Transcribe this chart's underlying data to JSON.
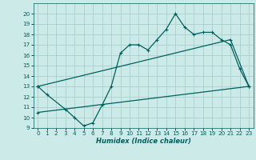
{
  "background_color": "#cceae7",
  "grid_color": "#aacfcc",
  "line_color": "#006060",
  "xlabel": "Humidex (Indice chaleur)",
  "ylim": [
    9,
    21
  ],
  "xlim": [
    -0.5,
    23.5
  ],
  "yticks": [
    9,
    10,
    11,
    12,
    13,
    14,
    15,
    16,
    17,
    18,
    19,
    20
  ],
  "xticks": [
    0,
    1,
    2,
    3,
    4,
    5,
    6,
    7,
    8,
    9,
    10,
    11,
    12,
    13,
    14,
    15,
    16,
    17,
    18,
    19,
    20,
    21,
    22,
    23
  ],
  "curve1_x": [
    0,
    1,
    3,
    4,
    5,
    6,
    7,
    8,
    9,
    10,
    11,
    12,
    13,
    14,
    15,
    16,
    17,
    18,
    19,
    20,
    21,
    22,
    23
  ],
  "curve1_y": [
    13.0,
    12.2,
    10.8,
    10.0,
    9.2,
    9.5,
    11.2,
    13.0,
    16.2,
    17.0,
    17.0,
    16.5,
    17.5,
    18.5,
    20.0,
    18.7,
    18.0,
    18.2,
    18.2,
    17.5,
    17.0,
    14.7,
    13.0
  ],
  "curve2_x": [
    0,
    21,
    23
  ],
  "curve2_y": [
    13.0,
    17.5,
    13.0
  ],
  "curve3_x": [
    0,
    23
  ],
  "curve3_y": [
    10.5,
    13.0
  ],
  "xlabel_fontsize": 6.0,
  "tick_fontsize": 5.2
}
